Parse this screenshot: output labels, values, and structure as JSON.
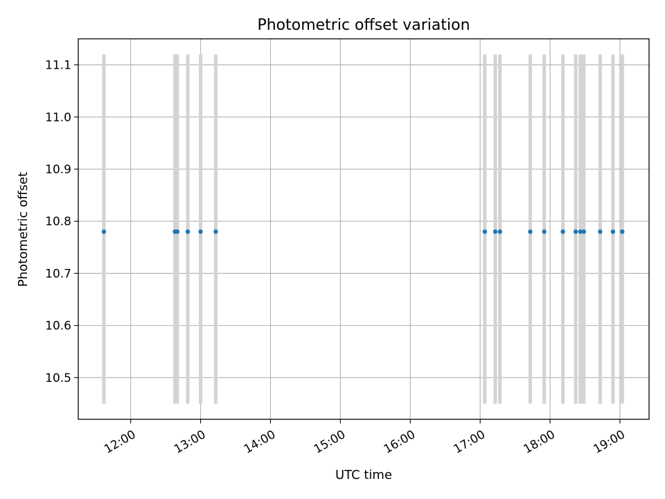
{
  "chart_data": {
    "type": "scatter",
    "title": "Photometric offset variation",
    "xlabel": "UTC time",
    "ylabel": "Photometric offset",
    "x_unit": "time of day (UTC)",
    "xlim": [
      "11:15",
      "19:25"
    ],
    "ylim": [
      10.42,
      11.15
    ],
    "grid": true,
    "x_ticks": [
      "12:00",
      "13:00",
      "14:00",
      "15:00",
      "16:00",
      "17:00",
      "18:00",
      "19:00"
    ],
    "y_ticks": [
      10.5,
      10.6,
      10.7,
      10.8,
      10.9,
      11.0,
      11.1
    ],
    "points": [
      {
        "x": "11:37",
        "y": 10.78
      },
      {
        "x": "12:38",
        "y": 10.78
      },
      {
        "x": "12:40",
        "y": 10.78
      },
      {
        "x": "12:49",
        "y": 10.78
      },
      {
        "x": "13:00",
        "y": 10.78
      },
      {
        "x": "13:13",
        "y": 10.78
      },
      {
        "x": "17:04",
        "y": 10.78
      },
      {
        "x": "17:13",
        "y": 10.78
      },
      {
        "x": "17:17",
        "y": 10.78
      },
      {
        "x": "17:43",
        "y": 10.78
      },
      {
        "x": "17:55",
        "y": 10.78
      },
      {
        "x": "18:11",
        "y": 10.78
      },
      {
        "x": "18:22",
        "y": 10.78
      },
      {
        "x": "18:26",
        "y": 10.78
      },
      {
        "x": "18:29",
        "y": 10.78
      },
      {
        "x": "18:43",
        "y": 10.78
      },
      {
        "x": "18:54",
        "y": 10.78
      },
      {
        "x": "19:02",
        "y": 10.78
      }
    ],
    "error_bars": {
      "lower": 10.45,
      "upper": 11.12,
      "color": "#d3d3d3"
    },
    "marker_color": "#1f77b4"
  }
}
